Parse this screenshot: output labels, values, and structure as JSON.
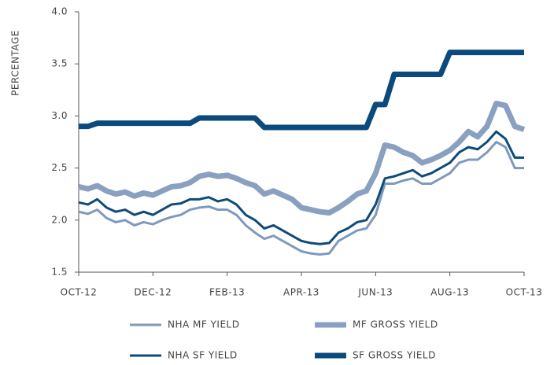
{
  "chart_data": {
    "type": "line",
    "ylabel": "PERCENTAGE",
    "categories": [
      "OCT-12",
      null,
      null,
      null,
      null,
      null,
      null,
      null,
      "DEC-12",
      null,
      null,
      null,
      null,
      null,
      null,
      null,
      "FEB-13",
      null,
      null,
      null,
      null,
      null,
      null,
      null,
      "APR-13",
      null,
      null,
      null,
      null,
      null,
      null,
      null,
      "JUN-13",
      null,
      null,
      null,
      null,
      null,
      null,
      null,
      "AUG-13",
      null,
      null,
      null,
      null,
      null,
      null,
      null,
      "OCT-13"
    ],
    "ylim": [
      1.5,
      4.0
    ],
    "yticks": [
      1.5,
      {
        "value": 2,
        "label": "2.0"
      },
      2.5,
      {
        "value": 3,
        "label": "3.0"
      },
      3.5,
      {
        "value": 4,
        "label": "4.0"
      }
    ],
    "grid": false,
    "series": [
      {
        "name": "NHA MF YIELD",
        "color": "#7f99bd",
        "values": [
          2.08,
          2.06,
          2.1,
          2.02,
          1.98,
          2.0,
          1.95,
          1.98,
          1.96,
          2.0,
          2.03,
          2.05,
          2.1,
          2.12,
          2.13,
          2.1,
          2.1,
          2.05,
          1.95,
          1.88,
          1.82,
          1.85,
          1.8,
          1.75,
          1.7,
          1.68,
          1.67,
          1.68,
          1.8,
          1.85,
          1.9,
          1.92,
          2.05,
          2.35,
          2.35,
          2.38,
          2.4,
          2.35,
          2.35,
          2.4,
          2.45,
          2.55,
          2.58,
          2.58,
          2.65,
          2.75,
          2.7,
          2.5,
          2.5
        ]
      },
      {
        "name": "MF GROSS YIELD",
        "color": "#8aa0c0",
        "values": [
          2.32,
          2.3,
          2.33,
          2.28,
          2.25,
          2.27,
          2.23,
          2.26,
          2.24,
          2.28,
          2.32,
          2.33,
          2.36,
          2.42,
          2.44,
          2.42,
          2.43,
          2.4,
          2.36,
          2.33,
          2.25,
          2.28,
          2.24,
          2.2,
          2.12,
          2.1,
          2.08,
          2.07,
          2.12,
          2.18,
          2.25,
          2.28,
          2.45,
          2.72,
          2.7,
          2.65,
          2.62,
          2.55,
          2.58,
          2.62,
          2.67,
          2.75,
          2.85,
          2.8,
          2.9,
          3.12,
          3.1,
          2.9,
          2.87
        ]
      },
      {
        "name": "NHA SF YIELD",
        "color": "#0f4a78",
        "values": [
          2.17,
          2.15,
          2.2,
          2.12,
          2.08,
          2.1,
          2.05,
          2.08,
          2.05,
          2.1,
          2.15,
          2.16,
          2.2,
          2.2,
          2.22,
          2.18,
          2.2,
          2.15,
          2.05,
          2.0,
          1.92,
          1.95,
          1.9,
          1.85,
          1.8,
          1.78,
          1.77,
          1.78,
          1.88,
          1.92,
          1.98,
          2.0,
          2.15,
          2.4,
          2.42,
          2.45,
          2.48,
          2.42,
          2.45,
          2.5,
          2.55,
          2.65,
          2.7,
          2.68,
          2.75,
          2.85,
          2.78,
          2.6,
          2.6
        ]
      },
      {
        "name": "SF GROSS YIELD",
        "color": "#0b4a7c",
        "values": [
          2.9,
          2.9,
          2.93,
          2.93,
          2.93,
          2.93,
          2.93,
          2.93,
          2.93,
          2.93,
          2.93,
          2.93,
          2.93,
          2.98,
          2.98,
          2.98,
          2.98,
          2.98,
          2.98,
          2.98,
          2.89,
          2.89,
          2.89,
          2.89,
          2.89,
          2.89,
          2.89,
          2.89,
          2.89,
          2.89,
          2.89,
          2.89,
          3.11,
          3.11,
          3.4,
          3.4,
          3.4,
          3.4,
          3.4,
          3.4,
          3.61,
          3.61,
          3.61,
          3.61,
          3.61,
          3.61,
          3.61,
          3.61,
          3.61
        ]
      }
    ]
  }
}
